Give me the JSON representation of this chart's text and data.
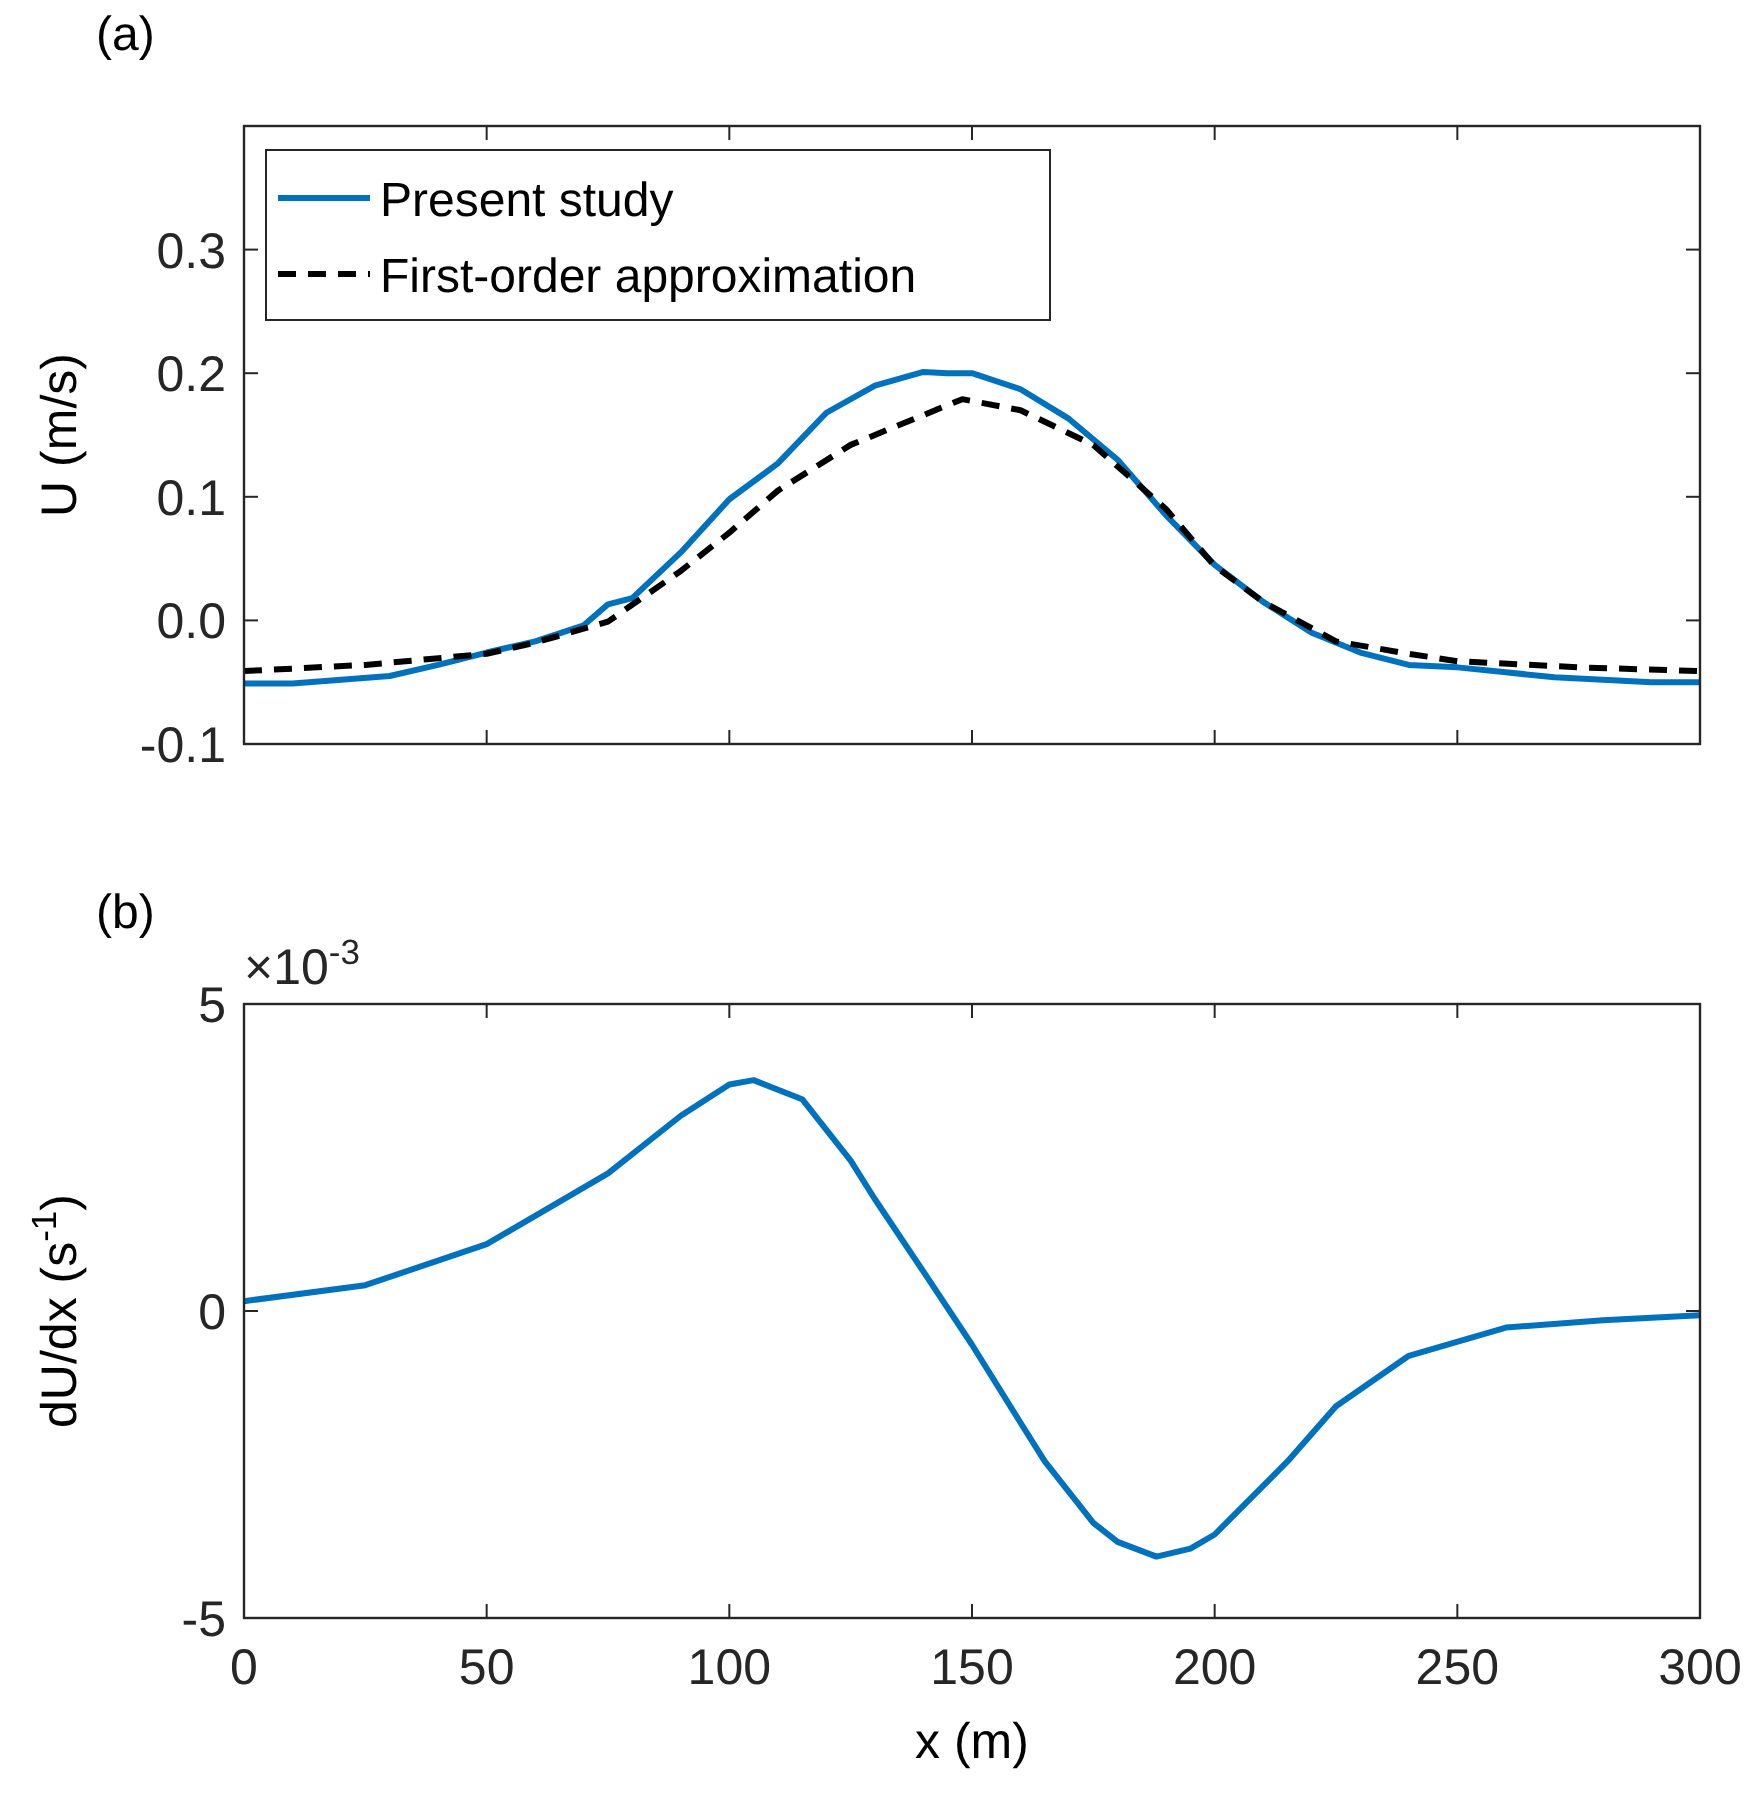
{
  "chart_data": [
    {
      "type": "line",
      "title": "(a)",
      "ylabel": "U (m/s)",
      "xlim": [
        0,
        300
      ],
      "xticks": [
        {
          "value": 0,
          "label": null
        },
        {
          "value": 50,
          "label": null
        },
        {
          "value": 100,
          "label": null
        },
        {
          "value": 150,
          "label": null
        },
        {
          "value": 200,
          "label": null
        },
        {
          "value": 250,
          "label": null
        },
        {
          "value": 300,
          "label": null
        }
      ],
      "ylim": [
        -0.1,
        0.4
      ],
      "yticks": [
        -0.1,
        {
          "value": 0,
          "label": "0.0"
        },
        0.1,
        0.2,
        0.3
      ],
      "tick_labels": "y",
      "grid": false,
      "legend": "top left",
      "series": [
        {
          "name": "Present study",
          "color": "#0072bd",
          "line_style": "solid",
          "x": [
            0,
            10,
            20,
            30,
            40,
            50,
            60,
            70,
            75,
            80,
            90,
            100,
            110,
            120,
            130,
            140,
            145,
            150,
            160,
            170,
            180,
            190,
            200,
            210,
            220,
            230,
            240,
            250,
            260,
            270,
            280,
            290,
            300
          ],
          "values": [
            -0.051,
            -0.051,
            -0.048,
            -0.045,
            -0.036,
            -0.026,
            -0.017,
            -0.004,
            0.013,
            0.018,
            0.055,
            0.098,
            0.127,
            0.168,
            0.19,
            0.201,
            0.2,
            0.2,
            0.187,
            0.163,
            0.13,
            0.085,
            0.045,
            0.015,
            -0.01,
            -0.026,
            -0.036,
            -0.038,
            -0.042,
            -0.046,
            -0.048,
            -0.05,
            -0.05
          ]
        },
        {
          "name": "First-order approximation",
          "color": "#000000",
          "line_style": "dashed",
          "x": [
            0,
            25,
            50,
            60,
            75,
            90,
            100,
            110,
            125,
            148,
            160,
            175,
            190,
            200,
            210,
            225,
            240,
            250,
            275,
            300
          ],
          "values": [
            -0.041,
            -0.036,
            -0.027,
            -0.018,
            -0.001,
            0.04,
            0.071,
            0.105,
            0.142,
            0.179,
            0.17,
            0.142,
            0.09,
            0.044,
            0.015,
            -0.017,
            -0.027,
            -0.033,
            -0.038,
            -0.041
          ]
        }
      ]
    },
    {
      "type": "line",
      "title": "(b)",
      "xlabel": "x (m)",
      "ylabel": "dU/dx (s$^{-1}$)",
      "annotations": [
        "×10$^{-3}$"
      ],
      "xlim": [
        0,
        300
      ],
      "xticks": [
        0,
        50,
        100,
        150,
        200,
        250,
        300
      ],
      "ylim": [
        -5,
        5
      ],
      "yticks": [
        -5,
        0,
        5
      ],
      "grid": false,
      "series": [
        {
          "color": "#0072bd",
          "line_style": "solid",
          "x": [
            0,
            25,
            50,
            75,
            90,
            100,
            105,
            115,
            125,
            130,
            140,
            150,
            160,
            165,
            175,
            180,
            188,
            195,
            200,
            215,
            225,
            240,
            260,
            280,
            300
          ],
          "values": [
            0.16,
            0.42,
            1.09,
            2.24,
            3.18,
            3.69,
            3.76,
            3.45,
            2.45,
            1.82,
            0.64,
            -0.55,
            -1.82,
            -2.45,
            -3.45,
            -3.76,
            -4.0,
            -3.87,
            -3.64,
            -2.45,
            -1.55,
            -0.73,
            -0.27,
            -0.15,
            -0.07
          ]
        }
      ]
    }
  ]
}
